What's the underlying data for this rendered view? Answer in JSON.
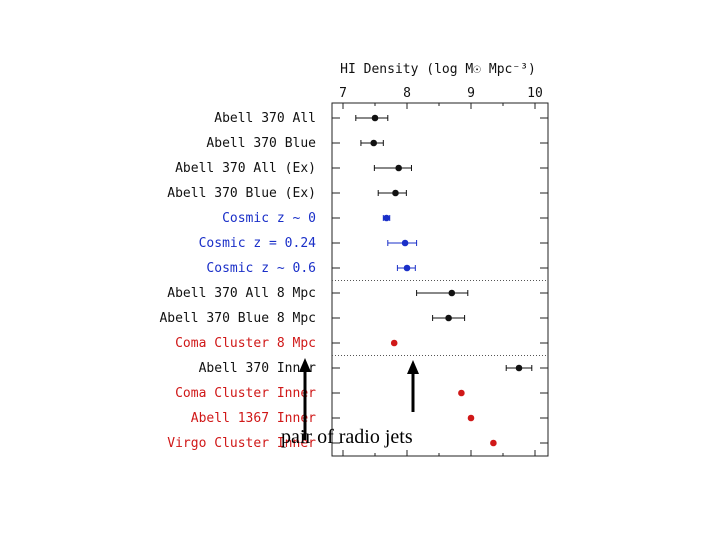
{
  "chart_data": {
    "type": "scatter",
    "orientation": "horizontal",
    "title": "HI Density (log M☉ Mpc⁻³)",
    "xlim": [
      7,
      10
    ],
    "x_ticks": [
      "7",
      "8",
      "9",
      "10"
    ],
    "grid": false,
    "rows": [
      {
        "label": "Abell 370 All",
        "value": 7.5,
        "err_lo": 0.3,
        "err_hi": 0.2,
        "color": "black"
      },
      {
        "label": "Abell 370 Blue",
        "value": 7.48,
        "err_lo": 0.2,
        "err_hi": 0.15,
        "color": "black"
      },
      {
        "label": "Abell 370 All (Ex)",
        "value": 7.87,
        "err_lo": 0.38,
        "err_hi": 0.2,
        "color": "black"
      },
      {
        "label": "Abell 370 Blue (Ex)",
        "value": 7.82,
        "err_lo": 0.27,
        "err_hi": 0.17,
        "color": "black"
      },
      {
        "label": "Cosmic z ~ 0",
        "value": 7.68,
        "err_lo": 0.05,
        "err_hi": 0.05,
        "color": "blue"
      },
      {
        "label": "Cosmic z = 0.24",
        "value": 7.97,
        "err_lo": 0.27,
        "err_hi": 0.18,
        "color": "blue"
      },
      {
        "label": "Cosmic z ~ 0.6",
        "value": 8.0,
        "err_lo": 0.15,
        "err_hi": 0.13,
        "color": "blue"
      },
      {
        "label": "Abell 370 All 8 Mpc",
        "value": 8.7,
        "err_lo": 0.55,
        "err_hi": 0.25,
        "color": "black"
      },
      {
        "label": "Abell 370 Blue 8 Mpc",
        "value": 8.65,
        "err_lo": 0.25,
        "err_hi": 0.25,
        "color": "black"
      },
      {
        "label": "Coma Cluster 8 Mpc",
        "value": 7.8,
        "err_lo": 0,
        "err_hi": 0,
        "color": "red"
      },
      {
        "label": "Abell 370 Inner",
        "value": 9.75,
        "err_lo": 0.2,
        "err_hi": 0.2,
        "color": "black"
      },
      {
        "label": "Coma Cluster Inner",
        "value": 8.85,
        "err_lo": 0,
        "err_hi": 0,
        "color": "red"
      },
      {
        "label": "Abell 1367 Inner",
        "value": 9.0,
        "err_lo": 0,
        "err_hi": 0,
        "color": "red"
      },
      {
        "label": "Virgo Cluster Inner",
        "value": 9.35,
        "err_lo": 0,
        "err_hi": 0,
        "color": "red"
      }
    ],
    "separators_after_rows": [
      6,
      9
    ],
    "annotation": "pair of radio jets",
    "colors": {
      "black": "#111111",
      "blue": "#1a2fc8",
      "red": "#d01818"
    }
  }
}
